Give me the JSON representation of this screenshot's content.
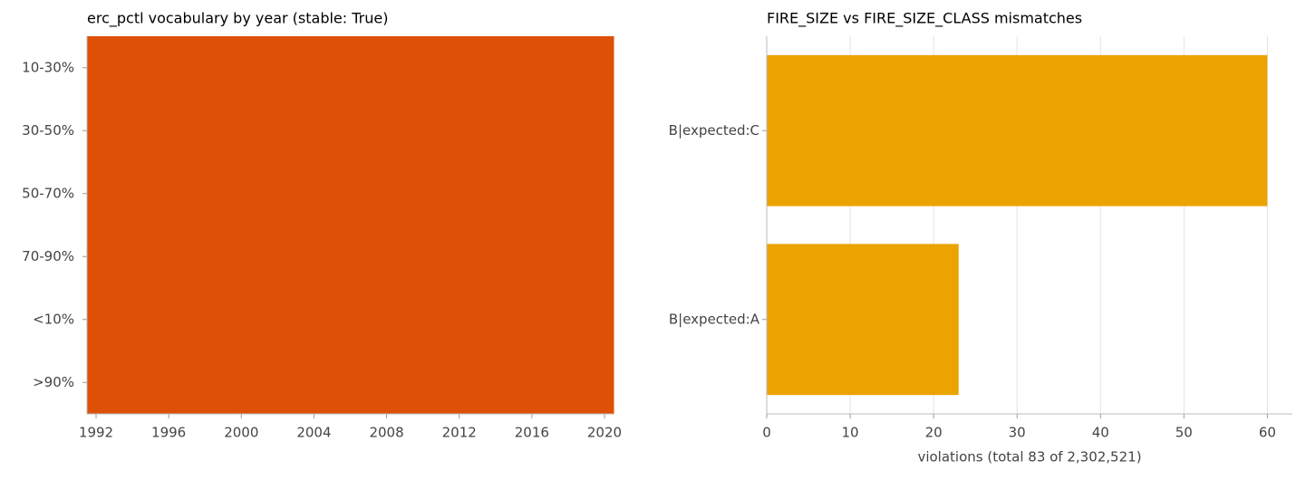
{
  "chart_data": [
    {
      "type": "heatmap",
      "title": "erc_pctl vocabulary by year (stable: True)",
      "x": [
        1992,
        1993,
        1994,
        1995,
        1996,
        1997,
        1998,
        1999,
        2000,
        2001,
        2002,
        2003,
        2004,
        2005,
        2006,
        2007,
        2008,
        2009,
        2010,
        2011,
        2012,
        2013,
        2014,
        2015,
        2016,
        2017,
        2018,
        2019,
        2020
      ],
      "categories": [
        "10-30%",
        "30-50%",
        "50-70%",
        "70-90%",
        "<10%",
        ">90%"
      ],
      "values": [
        [
          1,
          1,
          1,
          1,
          1,
          1,
          1,
          1,
          1,
          1,
          1,
          1,
          1,
          1,
          1,
          1,
          1,
          1,
          1,
          1,
          1,
          1,
          1,
          1,
          1,
          1,
          1,
          1,
          1
        ],
        [
          1,
          1,
          1,
          1,
          1,
          1,
          1,
          1,
          1,
          1,
          1,
          1,
          1,
          1,
          1,
          1,
          1,
          1,
          1,
          1,
          1,
          1,
          1,
          1,
          1,
          1,
          1,
          1,
          1
        ],
        [
          1,
          1,
          1,
          1,
          1,
          1,
          1,
          1,
          1,
          1,
          1,
          1,
          1,
          1,
          1,
          1,
          1,
          1,
          1,
          1,
          1,
          1,
          1,
          1,
          1,
          1,
          1,
          1,
          1
        ],
        [
          1,
          1,
          1,
          1,
          1,
          1,
          1,
          1,
          1,
          1,
          1,
          1,
          1,
          1,
          1,
          1,
          1,
          1,
          1,
          1,
          1,
          1,
          1,
          1,
          1,
          1,
          1,
          1,
          1
        ],
        [
          1,
          1,
          1,
          1,
          1,
          1,
          1,
          1,
          1,
          1,
          1,
          1,
          1,
          1,
          1,
          1,
          1,
          1,
          1,
          1,
          1,
          1,
          1,
          1,
          1,
          1,
          1,
          1,
          1
        ],
        [
          1,
          1,
          1,
          1,
          1,
          1,
          1,
          1,
          1,
          1,
          1,
          1,
          1,
          1,
          1,
          1,
          1,
          1,
          1,
          1,
          1,
          1,
          1,
          1,
          1,
          1,
          1,
          1,
          1
        ]
      ],
      "color": "#de5006",
      "xlim": [
        1991.5,
        2020.5
      ],
      "xticks": [
        1992,
        1996,
        2000,
        2004,
        2008,
        2012,
        2016,
        2020
      ]
    },
    {
      "type": "barh",
      "title": "FIRE_SIZE vs FIRE_SIZE_CLASS mismatches",
      "categories": [
        "B|expected:C",
        "B|expected:A"
      ],
      "values": [
        60,
        23
      ],
      "color": "#eba300",
      "xlabel": "violations (total 83 of 2,302,521)",
      "xlim": [
        0,
        63
      ],
      "xticks": [
        0,
        10,
        20,
        30,
        40,
        50,
        60
      ],
      "grid": true
    }
  ]
}
